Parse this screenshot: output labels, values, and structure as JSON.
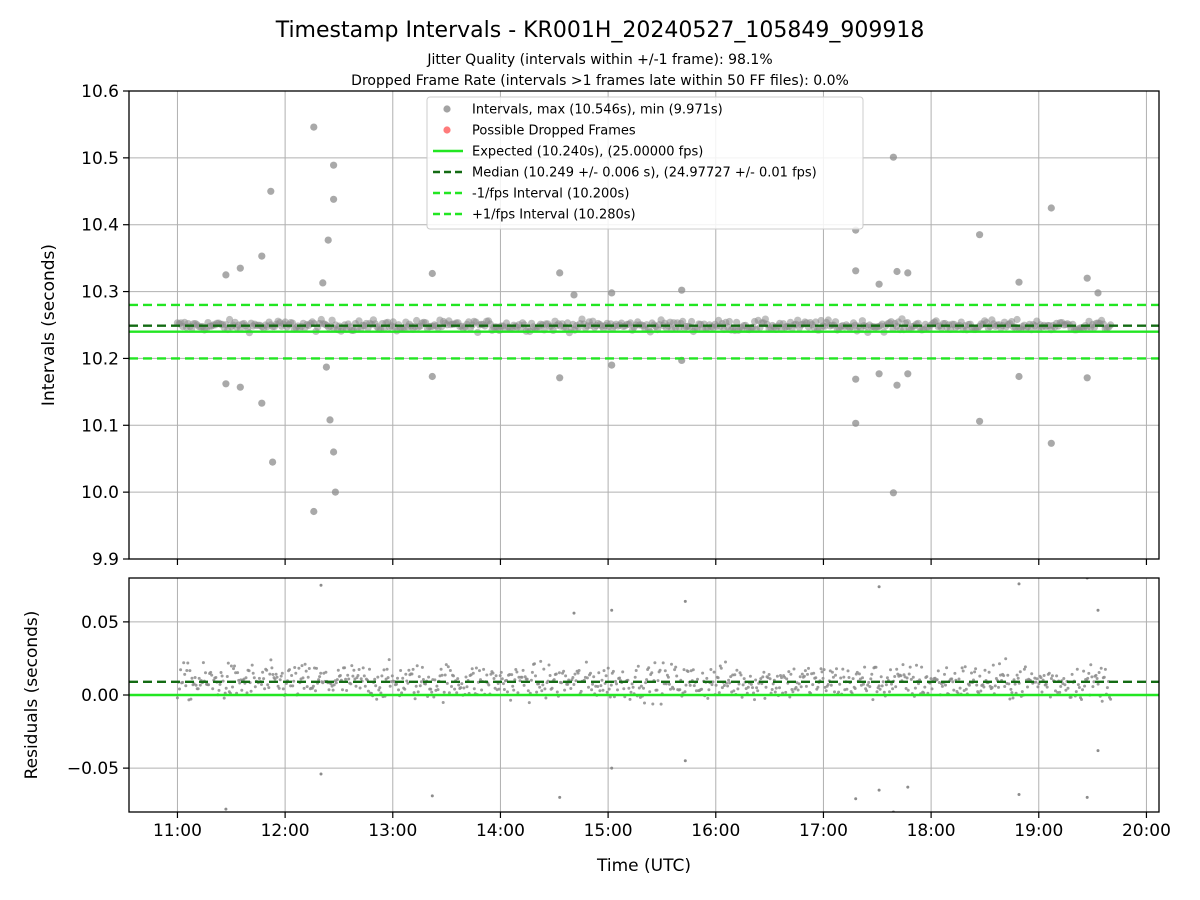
{
  "title": "Timestamp Intervals - KR001H_20240527_105849_909918",
  "subtitle_1": "Jitter Quality (intervals within +/-1 frame): 98.1%",
  "subtitle_2": "Dropped Frame Rate (intervals >1 frames late within 50 FF files): 0.0%",
  "colors": {
    "intervals": "#8c8c8c",
    "dropped": "#ff5a5a",
    "expected": "#22e622",
    "median": "#136b13",
    "bounds": "#22e622",
    "grid": "#b0b0b0"
  },
  "chart_data": [
    {
      "type": "scatter",
      "panel": "intervals",
      "xlabel": "",
      "ylabel": "Intervals (seconds)",
      "ylim": [
        9.9,
        10.6
      ],
      "yticks": [
        "9.9",
        "10.0",
        "10.1",
        "10.2",
        "10.3",
        "10.4",
        "10.5",
        "10.6"
      ],
      "xlim": [
        "10:33",
        "20:07"
      ],
      "xticks": [
        "11:00",
        "12:00",
        "13:00",
        "14:00",
        "15:00",
        "16:00",
        "17:00",
        "18:00",
        "19:00",
        "20:00"
      ],
      "grid": true,
      "legend_position": "upper-center",
      "legend": [
        {
          "label": "Intervals, max (10.546s), min (9.971s)",
          "kind": "dot",
          "color": "#8c8c8c"
        },
        {
          "label": "Possible Dropped Frames",
          "kind": "dot",
          "color": "#ff5a5a"
        },
        {
          "label": "Expected (10.240s), (25.00000 fps)",
          "kind": "solid",
          "color": "#22e622"
        },
        {
          "label": "Median (10.249 +/- 0.006 s), (24.97727 +/- 0.01 fps)",
          "kind": "dashed",
          "color": "#136b13"
        },
        {
          "label": "-1/fps Interval (10.200s)",
          "kind": "dashed",
          "color": "#22e622"
        },
        {
          "label": "+1/fps Interval (10.280s)",
          "kind": "dashed",
          "color": "#22e622"
        }
      ],
      "hlines": [
        {
          "name": "Expected (10.240s), (25.00000 fps)",
          "y": 10.24,
          "style": "solid",
          "color": "#22e622"
        },
        {
          "name": "Median (10.249 +/- 0.006 s), (24.97727 +/- 0.01 fps)",
          "y": 10.249,
          "style": "dashed",
          "color": "#136b13"
        },
        {
          "name": "-1/fps Interval (10.200s)",
          "y": 10.2,
          "style": "dashed",
          "color": "#22e622"
        },
        {
          "name": "+1/fps Interval (10.280s)",
          "y": 10.28,
          "style": "dashed",
          "color": "#22e622"
        }
      ],
      "series": [
        {
          "name": "Intervals, max (10.546s), min (9.971s)",
          "band": {
            "x_start": "11:00",
            "x_end": "19:40",
            "center": 10.249,
            "spread": 0.008
          },
          "points": [
            {
              "x": "11:27",
              "y": 10.325
            },
            {
              "x": "11:35",
              "y": 10.335
            },
            {
              "x": "11:52",
              "y": 10.45
            },
            {
              "x": "11:47",
              "y": 10.353
            },
            {
              "x": "11:27",
              "y": 10.162
            },
            {
              "x": "11:35",
              "y": 10.157
            },
            {
              "x": "11:47",
              "y": 10.133
            },
            {
              "x": "11:53",
              "y": 10.045
            },
            {
              "x": "12:16",
              "y": 10.546
            },
            {
              "x": "12:16",
              "y": 9.971
            },
            {
              "x": "12:21",
              "y": 10.313
            },
            {
              "x": "12:23",
              "y": 10.187
            },
            {
              "x": "12:24",
              "y": 10.377
            },
            {
              "x": "12:25",
              "y": 10.108
            },
            {
              "x": "12:27",
              "y": 10.489
            },
            {
              "x": "12:27",
              "y": 10.438
            },
            {
              "x": "12:27",
              "y": 10.06
            },
            {
              "x": "12:28",
              "y": 10.0
            },
            {
              "x": "13:22",
              "y": 10.327
            },
            {
              "x": "13:22",
              "y": 10.173
            },
            {
              "x": "14:33",
              "y": 10.328
            },
            {
              "x": "14:33",
              "y": 10.171
            },
            {
              "x": "14:41",
              "y": 10.295
            },
            {
              "x": "15:02",
              "y": 10.298
            },
            {
              "x": "15:02",
              "y": 10.19
            },
            {
              "x": "15:41",
              "y": 10.302
            },
            {
              "x": "15:41",
              "y": 10.197
            },
            {
              "x": "17:18",
              "y": 10.392
            },
            {
              "x": "17:18",
              "y": 10.331
            },
            {
              "x": "17:18",
              "y": 10.169
            },
            {
              "x": "17:18",
              "y": 10.103
            },
            {
              "x": "17:31",
              "y": 10.311
            },
            {
              "x": "17:31",
              "y": 10.177
            },
            {
              "x": "17:39",
              "y": 10.501
            },
            {
              "x": "17:39",
              "y": 9.999
            },
            {
              "x": "17:41",
              "y": 10.33
            },
            {
              "x": "17:41",
              "y": 10.16
            },
            {
              "x": "17:47",
              "y": 10.328
            },
            {
              "x": "17:47",
              "y": 10.177
            },
            {
              "x": "18:27",
              "y": 10.385
            },
            {
              "x": "18:27",
              "y": 10.106
            },
            {
              "x": "18:49",
              "y": 10.314
            },
            {
              "x": "18:49",
              "y": 10.173
            },
            {
              "x": "19:07",
              "y": 10.425
            },
            {
              "x": "19:07",
              "y": 10.073
            },
            {
              "x": "19:27",
              "y": 10.32
            },
            {
              "x": "19:27",
              "y": 10.171
            },
            {
              "x": "19:33",
              "y": 10.298
            }
          ]
        },
        {
          "name": "Possible Dropped Frames",
          "points": []
        }
      ]
    },
    {
      "type": "scatter",
      "panel": "residuals",
      "xlabel": "Time (UTC)",
      "ylabel": "Residuals (seconds)",
      "ylim": [
        -0.08,
        0.08
      ],
      "yticks": [
        "−0.05",
        "0.00",
        "0.05"
      ],
      "ytick_values": [
        -0.05,
        0.0,
        0.05
      ],
      "xlim": [
        "10:33",
        "20:07"
      ],
      "xticks": [
        "11:00",
        "12:00",
        "13:00",
        "14:00",
        "15:00",
        "16:00",
        "17:00",
        "18:00",
        "19:00",
        "20:00"
      ],
      "grid": true,
      "hlines": [
        {
          "y": 0.0,
          "style": "solid",
          "color": "#22e622"
        },
        {
          "y": 0.009,
          "style": "dashed",
          "color": "#136b13"
        }
      ],
      "series": [
        {
          "name": "",
          "band": {
            "x_start": "11:00",
            "x_end": "19:40",
            "center": 0.009,
            "spread": 0.022
          },
          "points": [
            {
              "x": "11:27",
              "y": -0.078
            },
            {
              "x": "12:20",
              "y": 0.075
            },
            {
              "x": "12:20",
              "y": -0.054
            },
            {
              "x": "13:22",
              "y": -0.069
            },
            {
              "x": "14:33",
              "y": -0.07
            },
            {
              "x": "14:41",
              "y": 0.056
            },
            {
              "x": "15:02",
              "y": 0.058
            },
            {
              "x": "15:02",
              "y": -0.05
            },
            {
              "x": "15:43",
              "y": 0.064
            },
            {
              "x": "15:43",
              "y": -0.045
            },
            {
              "x": "17:18",
              "y": -0.071
            },
            {
              "x": "17:31",
              "y": 0.074
            },
            {
              "x": "17:31",
              "y": -0.065
            },
            {
              "x": "17:39",
              "y": -0.08
            },
            {
              "x": "17:47",
              "y": -0.063
            },
            {
              "x": "18:49",
              "y": 0.076
            },
            {
              "x": "18:49",
              "y": -0.068
            },
            {
              "x": "19:27",
              "y": 0.08
            },
            {
              "x": "19:27",
              "y": -0.07
            },
            {
              "x": "19:33",
              "y": 0.058
            },
            {
              "x": "19:33",
              "y": -0.038
            }
          ]
        }
      ]
    }
  ]
}
